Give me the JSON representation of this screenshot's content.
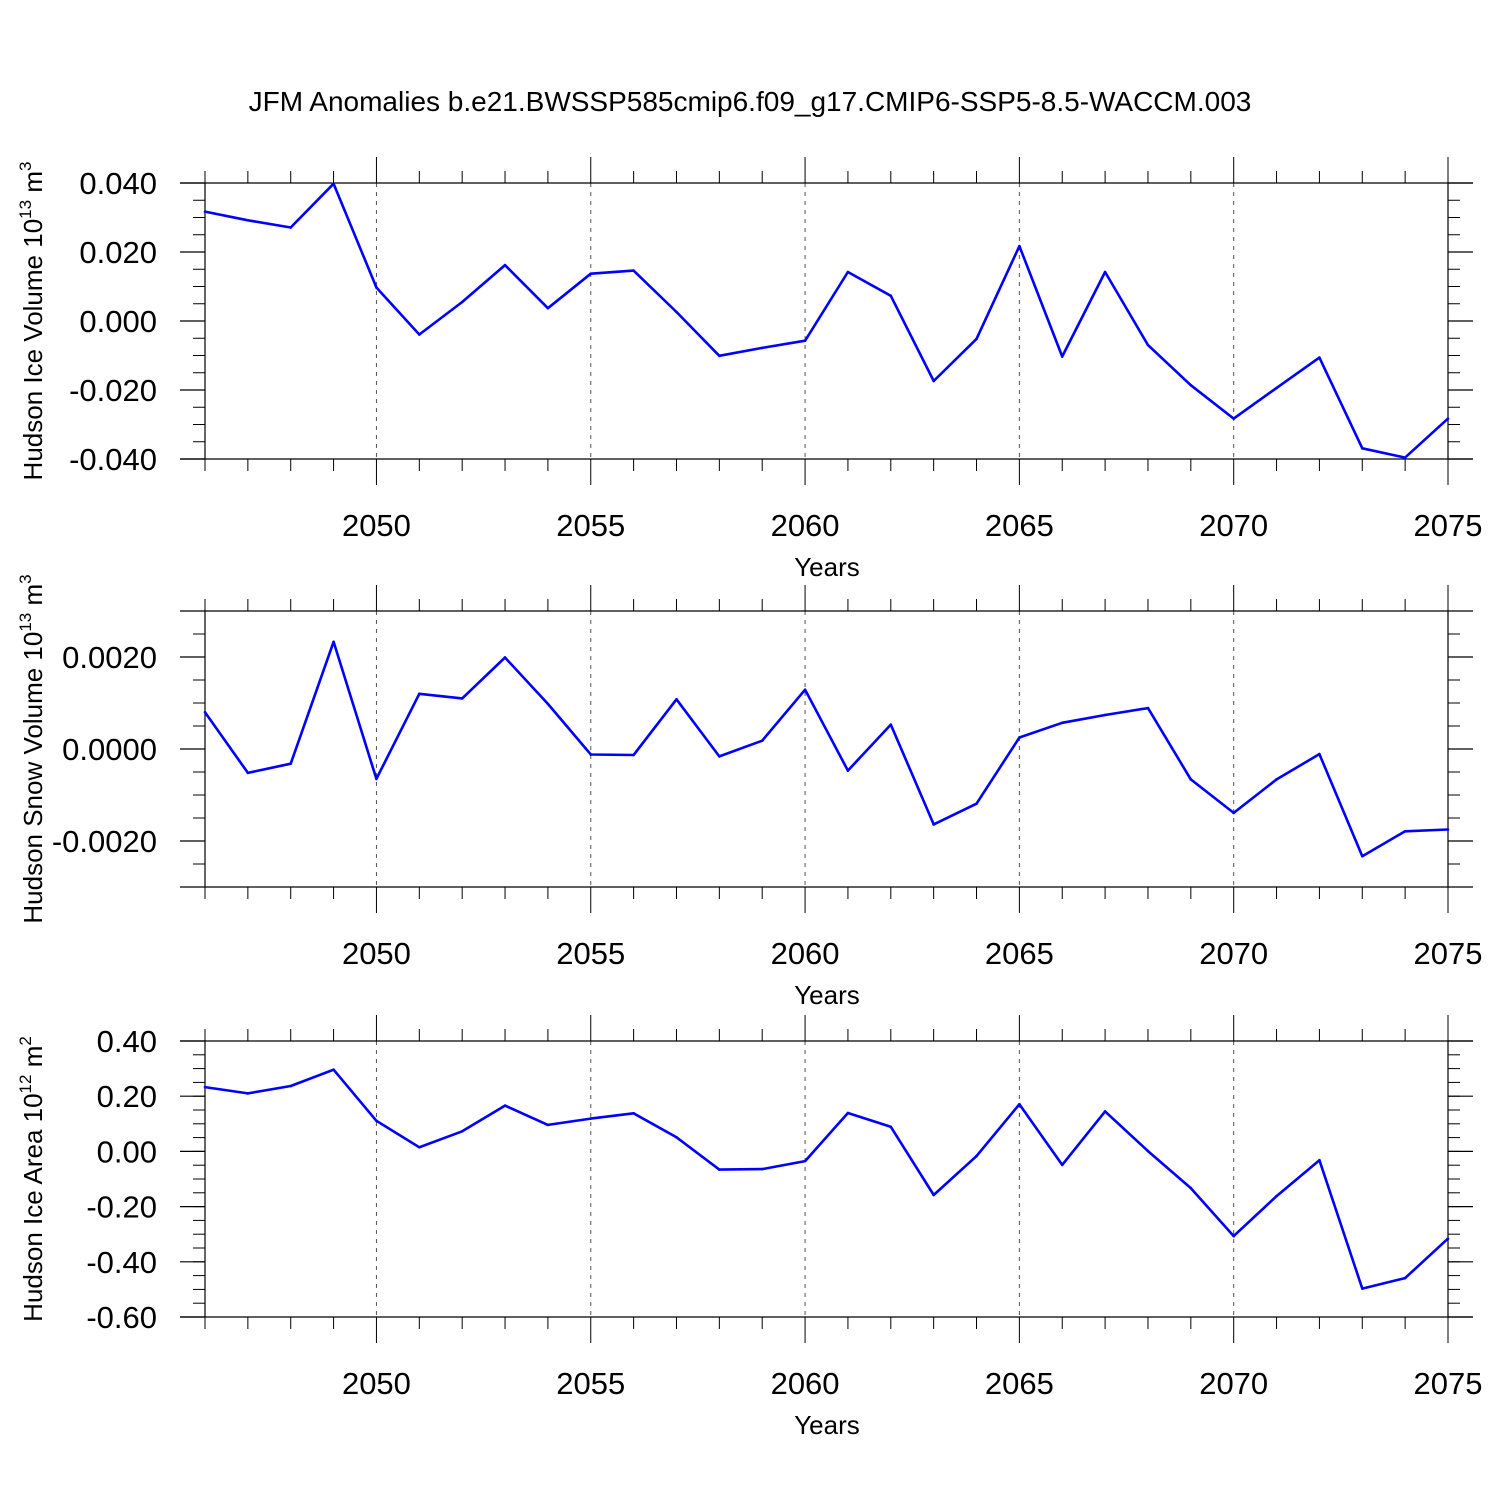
{
  "title": "JFM Anomalies b.e21.BWSSP585cmip6.f09_g17.CMIP6-SSP5-8.5-WACCM.003",
  "line_color": "#0000ff",
  "chart_data": [
    {
      "type": "line",
      "ylabel_text": "Hudson Ice Volume 10",
      "ylabel_exp": "13",
      "ylabel_unit": " m",
      "ylabel_unit_exp": "3",
      "xlabel": "Years",
      "xlim": [
        2046,
        2075
      ],
      "ylim": [
        -0.04,
        0.04
      ],
      "yticks": [
        -0.04,
        -0.02,
        0.0,
        0.02,
        0.04
      ],
      "ytick_labels": [
        "-0.040",
        "-0.020",
        "0.000",
        "0.020",
        "0.040"
      ],
      "xticks": [
        2050,
        2055,
        2060,
        2065,
        2070,
        2075
      ],
      "xtick_labels": [
        "2050",
        "2055",
        "2060",
        "2065",
        "2070",
        "2075"
      ],
      "x": [
        2046,
        2047,
        2048,
        2049,
        2050,
        2051,
        2052,
        2053,
        2054,
        2055,
        2056,
        2057,
        2058,
        2059,
        2060,
        2061,
        2062,
        2063,
        2064,
        2065,
        2066,
        2067,
        2068,
        2069,
        2070,
        2071,
        2072,
        2073,
        2074,
        2075
      ],
      "values": [
        0.0317,
        0.0292,
        0.0271,
        0.0398,
        0.0097,
        -0.0039,
        0.0055,
        0.0162,
        0.0037,
        0.0137,
        0.0146,
        0.0026,
        -0.0101,
        -0.0078,
        -0.0057,
        0.0142,
        0.0073,
        -0.0174,
        -0.0052,
        0.0217,
        -0.0103,
        0.0142,
        -0.007,
        -0.0186,
        -0.0283,
        -0.0194,
        -0.0106,
        -0.0369,
        -0.0396,
        -0.0283
      ]
    },
    {
      "type": "line",
      "ylabel_text": "Hudson Snow Volume 10",
      "ylabel_exp": "13",
      "ylabel_unit": " m",
      "ylabel_unit_exp": "3",
      "xlabel": "Years",
      "xlim": [
        2046,
        2075
      ],
      "ylim": [
        -0.003,
        0.003
      ],
      "yticks": [
        -0.002,
        0.0,
        0.002
      ],
      "ytick_labels": [
        "-0.0020",
        "0.0000",
        "0.0020"
      ],
      "xticks": [
        2050,
        2055,
        2060,
        2065,
        2070,
        2075
      ],
      "xtick_labels": [
        "2050",
        "2055",
        "2060",
        "2065",
        "2070",
        "2075"
      ],
      "x": [
        2046,
        2047,
        2048,
        2049,
        2050,
        2051,
        2052,
        2053,
        2054,
        2055,
        2056,
        2057,
        2058,
        2059,
        2060,
        2061,
        2062,
        2063,
        2064,
        2065,
        2066,
        2067,
        2068,
        2069,
        2070,
        2071,
        2072,
        2073,
        2074,
        2075
      ],
      "values": [
        0.0008,
        -0.00052,
        -0.00032,
        0.00233,
        -0.00065,
        0.0012,
        0.0011,
        0.00199,
        0.00098,
        -0.00012,
        -0.00013,
        0.00108,
        -0.00016,
        0.00018,
        0.00129,
        -0.00047,
        0.00053,
        -0.00164,
        -0.00119,
        0.00025,
        0.00057,
        0.00074,
        0.00089,
        -0.00066,
        -0.00139,
        -0.00066,
        -0.00011,
        -0.00233,
        -0.00179,
        -0.00175
      ]
    },
    {
      "type": "line",
      "ylabel_text": "Hudson Ice Area 10",
      "ylabel_exp": "12",
      "ylabel_unit": " m",
      "ylabel_unit_exp": "2",
      "xlabel": "Years",
      "xlim": [
        2046,
        2075
      ],
      "ylim": [
        -0.6,
        0.4
      ],
      "yticks": [
        -0.6,
        -0.4,
        -0.2,
        0.0,
        0.2,
        0.4
      ],
      "ytick_labels": [
        "-0.60",
        "-0.40",
        "-0.20",
        "0.00",
        "0.20",
        "0.40"
      ],
      "xticks": [
        2050,
        2055,
        2060,
        2065,
        2070,
        2075
      ],
      "xtick_labels": [
        "2050",
        "2055",
        "2060",
        "2065",
        "2070",
        "2075"
      ],
      "x": [
        2046,
        2047,
        2048,
        2049,
        2050,
        2051,
        2052,
        2053,
        2054,
        2055,
        2056,
        2057,
        2058,
        2059,
        2060,
        2061,
        2062,
        2063,
        2064,
        2065,
        2066,
        2067,
        2068,
        2069,
        2070,
        2071,
        2072,
        2073,
        2074,
        2075
      ],
      "values": [
        0.233,
        0.21,
        0.237,
        0.296,
        0.111,
        0.015,
        0.073,
        0.166,
        0.096,
        0.119,
        0.138,
        0.051,
        -0.066,
        -0.064,
        -0.035,
        0.139,
        0.089,
        -0.158,
        -0.017,
        0.171,
        -0.049,
        0.145,
        0.001,
        -0.133,
        -0.307,
        -0.162,
        -0.032,
        -0.497,
        -0.459,
        -0.316
      ]
    }
  ]
}
